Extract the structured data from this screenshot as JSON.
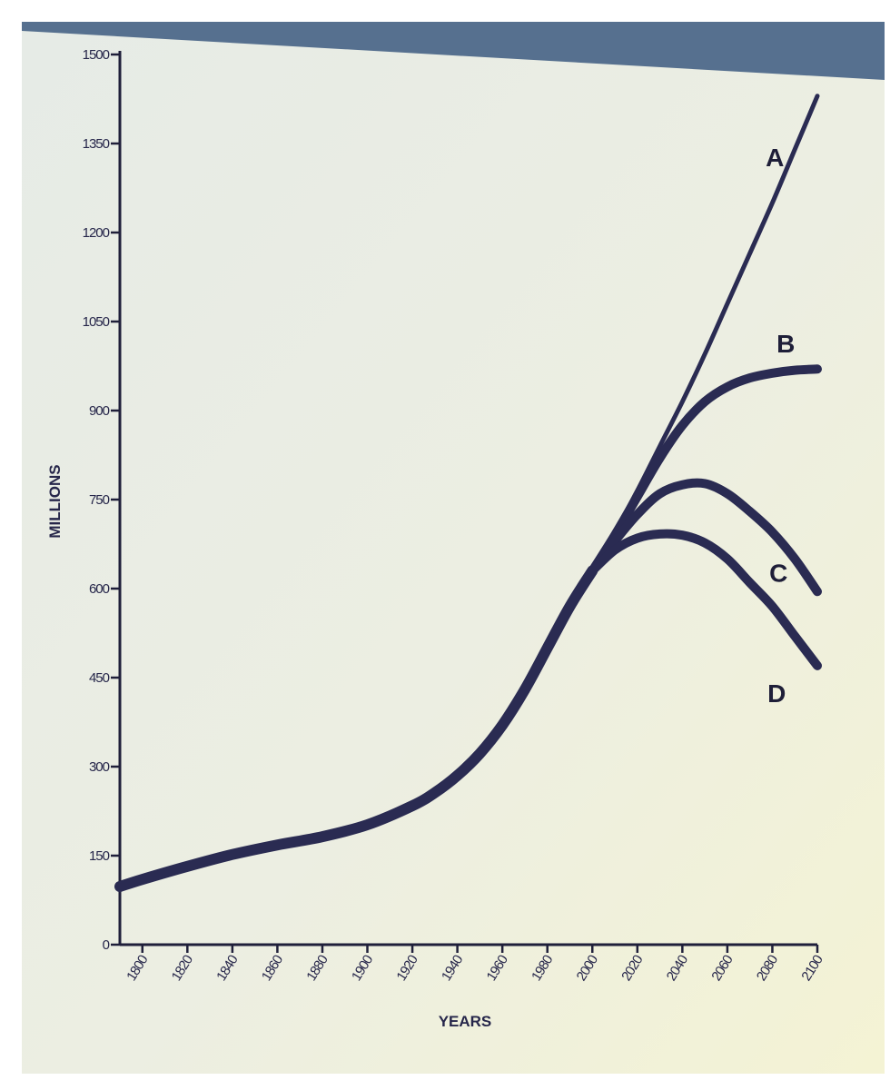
{
  "chart_data": {
    "type": "line",
    "title": "",
    "xlabel": "YEARS",
    "ylabel": "MILLIONS",
    "xlim": [
      1790,
      2100
    ],
    "ylim": [
      0,
      1500
    ],
    "x_ticks": [
      1800,
      1820,
      1840,
      1860,
      1880,
      1900,
      1920,
      1940,
      1960,
      1980,
      2000,
      2020,
      2040,
      2060,
      2080,
      2100
    ],
    "x_tick_labels": [
      "1800",
      "1820",
      "1840",
      "1860",
      "1880",
      "1900",
      "1920",
      "1940",
      "1960",
      "1980",
      "2000",
      "2020",
      "2040",
      "2060",
      "2080",
      "2100"
    ],
    "y_ticks": [
      0,
      150,
      300,
      450,
      600,
      750,
      900,
      1050,
      1200,
      1350,
      1500
    ],
    "y_tick_labels": [
      "0",
      "150",
      "300",
      "450",
      "600",
      "750",
      "900",
      "1050",
      "1200",
      "1350",
      "1500"
    ],
    "grid": false,
    "legend": "none",
    "colors": {
      "line": "#2a2b52",
      "axis": "#1f1f3a",
      "text": "#26264a",
      "background_top": "#e9ece6",
      "background_bottom": "#f3f4dc",
      "frame": "#56708f"
    },
    "history": {
      "name": "",
      "x": [
        1790,
        1800,
        1820,
        1840,
        1860,
        1880,
        1900,
        1920,
        1930,
        1940,
        1950,
        1960,
        1970,
        1980,
        1990,
        2000
      ],
      "y": [
        98,
        110,
        132,
        152,
        168,
        182,
        202,
        234,
        256,
        285,
        322,
        370,
        430,
        500,
        570,
        630
      ]
    },
    "series": [
      {
        "name": "A",
        "x": [
          2000,
          2010,
          2020,
          2030,
          2040,
          2050,
          2060,
          2070,
          2080,
          2090,
          2100
        ],
        "y": [
          630,
          695,
          765,
          840,
          915,
          995,
          1080,
          1165,
          1250,
          1340,
          1430
        ]
      },
      {
        "name": "B",
        "x": [
          2000,
          2010,
          2020,
          2030,
          2040,
          2050,
          2060,
          2070,
          2080,
          2090,
          2100
        ],
        "y": [
          630,
          690,
          755,
          820,
          875,
          915,
          940,
          955,
          963,
          968,
          970
        ]
      },
      {
        "name": "C",
        "x": [
          2000,
          2010,
          2020,
          2030,
          2040,
          2050,
          2060,
          2070,
          2080,
          2090,
          2100
        ],
        "y": [
          630,
          680,
          725,
          760,
          775,
          777,
          760,
          730,
          695,
          650,
          595
        ]
      },
      {
        "name": "D",
        "x": [
          2000,
          2010,
          2020,
          2030,
          2040,
          2050,
          2060,
          2070,
          2080,
          2090,
          2100
        ],
        "y": [
          630,
          665,
          685,
          692,
          690,
          677,
          650,
          610,
          570,
          520,
          470
        ]
      }
    ]
  }
}
